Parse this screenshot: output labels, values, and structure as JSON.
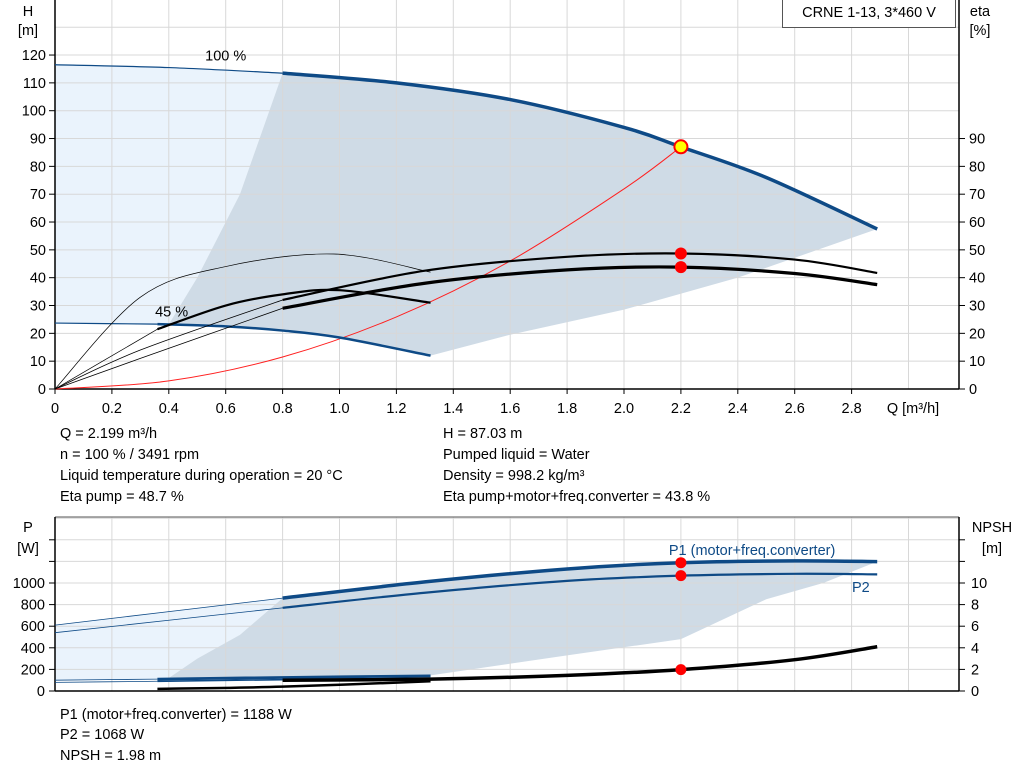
{
  "model_label": "CRNE 1-13, 3*460 V",
  "chart_data": [
    {
      "type": "line",
      "title": "",
      "xlabel": "Q [m³/h]",
      "ylabel": "H\n[m]",
      "ylabel_lines": [
        "H",
        "[m]"
      ],
      "y2label_lines": [
        "eta",
        "[%]"
      ],
      "xlim": [
        0,
        3.1
      ],
      "ylim": [
        0,
        140
      ],
      "y2lim": [
        0,
        140
      ],
      "xticks": [
        "0",
        "0.2",
        "0.4",
        "0.6",
        "0.8",
        "1.0",
        "1.2",
        "1.4",
        "1.6",
        "1.8",
        "2.0",
        "2.2",
        "2.4",
        "2.6",
        "2.8"
      ],
      "yticks": [
        "0",
        "10",
        "20",
        "30",
        "40",
        "50",
        "60",
        "70",
        "80",
        "90",
        "100",
        "110",
        "120"
      ],
      "y2ticks": [
        "0",
        "10",
        "20",
        "30",
        "40",
        "50",
        "60",
        "70",
        "80",
        "90"
      ],
      "grid": true,
      "annotations": [
        {
          "text": "100 %",
          "at": [
            0.6,
            118
          ]
        },
        {
          "text": "45 %",
          "at": [
            0.41,
            26
          ]
        }
      ],
      "series": [
        {
          "id": "head-100",
          "color": "#0e4a86",
          "points": [
            [
              0,
              116.5
            ],
            [
              0.4,
              115.5
            ],
            [
              0.8,
              113.5
            ],
            [
              1.2,
              110
            ],
            [
              1.6,
              104
            ],
            [
              2.0,
              94
            ],
            [
              2.2,
              87
            ],
            [
              2.5,
              76
            ],
            [
              2.89,
              57.5
            ]
          ]
        },
        {
          "id": "head-45",
          "color": "#0e4a86",
          "points": [
            [
              0,
              23.7
            ],
            [
              0.36,
              23.3
            ],
            [
              0.6,
              22.5
            ],
            [
              0.8,
              21
            ],
            [
              1.0,
              18.5
            ],
            [
              1.32,
              12
            ]
          ]
        },
        {
          "id": "eta-pump-100",
          "color": "#000000",
          "points": [
            [
              0,
              0
            ],
            [
              0.3,
              14
            ],
            [
              0.8,
              32
            ],
            [
              1.3,
              42.5
            ],
            [
              1.8,
              47.5
            ],
            [
              2.2,
              48.7
            ],
            [
              2.6,
              46.5
            ],
            [
              2.89,
              41.7
            ]
          ]
        },
        {
          "id": "eta-total-100",
          "color": "#000000",
          "points": [
            [
              0,
              0
            ],
            [
              0.3,
              11
            ],
            [
              0.8,
              29
            ],
            [
              1.3,
              38
            ],
            [
              1.8,
              42.8
            ],
            [
              2.2,
              43.8
            ],
            [
              2.6,
              41.5
            ],
            [
              2.89,
              37.5
            ]
          ]
        },
        {
          "id": "eta-pump-45",
          "color": "#000000",
          "points": [
            [
              0,
              0
            ],
            [
              0.3,
              33
            ],
            [
              0.6,
              44
            ],
            [
              0.98,
              48.5
            ],
            [
              1.32,
              42
            ]
          ]
        },
        {
          "id": "eta-total-45",
          "color": "#000000",
          "points": [
            [
              0,
              0
            ],
            [
              0.36,
              21.5
            ],
            [
              0.6,
              30
            ],
            [
              0.8,
              34
            ],
            [
              1.0,
              35.5
            ],
            [
              1.32,
              31
            ]
          ]
        },
        {
          "id": "system-curve",
          "color": "#ff2020",
          "points": [
            [
              0,
              0
            ],
            [
              0.4,
              2.9
            ],
            [
              0.8,
              11.5
            ],
            [
              1.2,
              25.9
            ],
            [
              1.6,
              46
            ],
            [
              2.0,
              71.9
            ],
            [
              2.2,
              87
            ]
          ]
        }
      ],
      "operating_points": [
        {
          "q": 2.2,
          "value": 87.03,
          "fill": "#ffff00"
        },
        {
          "q": 2.2,
          "value": 48.7,
          "fill": "#ff0000"
        },
        {
          "q": 2.2,
          "value": 43.8,
          "fill": "#ff0000"
        }
      ]
    },
    {
      "type": "line",
      "title": "",
      "ylabel_lines": [
        "P",
        "[W]"
      ],
      "y2label_lines": [
        "NPSH",
        "[m]"
      ],
      "xlim": [
        0,
        3.1
      ],
      "ylim": [
        0,
        1600
      ],
      "y2lim": [
        0,
        16
      ],
      "yticks": [
        "0",
        "200",
        "400",
        "600",
        "800",
        "1000"
      ],
      "y2ticks": [
        "0",
        "2",
        "4",
        "6",
        "8",
        "10"
      ],
      "grid": true,
      "series": [
        {
          "id": "p1-100",
          "name": "P1 (motor+freq.converter)",
          "color": "#0e4a86",
          "axis": "left",
          "points": [
            [
              0,
              610
            ],
            [
              0.4,
              735
            ],
            [
              0.8,
              860
            ],
            [
              1.3,
              1010
            ],
            [
              1.8,
              1130
            ],
            [
              2.2,
              1188
            ],
            [
              2.6,
              1205
            ],
            [
              2.89,
              1198
            ]
          ]
        },
        {
          "id": "p2-100",
          "name": "P2",
          "color": "#0e4a86",
          "axis": "left",
          "points": [
            [
              0,
              540
            ],
            [
              0.4,
              655
            ],
            [
              0.8,
              770
            ],
            [
              1.3,
              910
            ],
            [
              1.8,
              1020
            ],
            [
              2.2,
              1068
            ],
            [
              2.6,
              1085
            ],
            [
              2.89,
              1080
            ]
          ]
        },
        {
          "id": "p1-45",
          "color": "#0e4a86",
          "axis": "left",
          "points": [
            [
              0,
              100
            ],
            [
              0.36,
              110
            ],
            [
              0.8,
              125
            ],
            [
              1.32,
              140
            ]
          ]
        },
        {
          "id": "p2-45",
          "color": "#0e4a86",
          "axis": "left",
          "points": [
            [
              0,
              80
            ],
            [
              0.36,
              90
            ],
            [
              0.8,
              105
            ],
            [
              1.32,
              120
            ]
          ]
        },
        {
          "id": "npsh-45",
          "color": "#000000",
          "axis": "right",
          "points": [
            [
              0.36,
              0.2
            ],
            [
              0.8,
              0.4
            ],
            [
              1.32,
              0.9
            ]
          ]
        },
        {
          "id": "npsh-100",
          "color": "#000000",
          "axis": "right",
          "points": [
            [
              0.8,
              1.0
            ],
            [
              1.32,
              1.1
            ],
            [
              1.8,
              1.45
            ],
            [
              2.2,
              1.98
            ],
            [
              2.6,
              2.9
            ],
            [
              2.89,
              4.1
            ]
          ]
        }
      ],
      "operating_points": [
        {
          "q": 2.2,
          "value": 1188,
          "axis": "left",
          "fill": "#ff0000"
        },
        {
          "q": 2.2,
          "value": 1068,
          "axis": "left",
          "fill": "#ff0000"
        },
        {
          "q": 2.2,
          "value": 1.98,
          "axis": "right",
          "fill": "#ff0000"
        }
      ]
    }
  ],
  "duty_info": {
    "left": [
      "Q = 2.199 m³/h",
      "n = 100 % / 3491 rpm",
      "Liquid temperature during operation = 20 °C",
      "Eta pump = 48.7 %"
    ],
    "right": [
      "H = 87.03 m",
      "Pumped liquid = Water",
      "Density = 998.2 kg/m³",
      "Eta pump+motor+freq.converter = 43.8 %"
    ]
  },
  "power_info": [
    "P1 (motor+freq.converter) = 1188 W",
    "P2 = 1068 W",
    "NPSH = 1.98 m"
  ],
  "colors": {
    "curve_blue": "#0e4a86",
    "shade_dark": "#cfdbe6",
    "shade_light": "#eaf3fc",
    "grid": "#d8d8d8",
    "system": "#ff2020",
    "duty_point": "#ff0000"
  }
}
